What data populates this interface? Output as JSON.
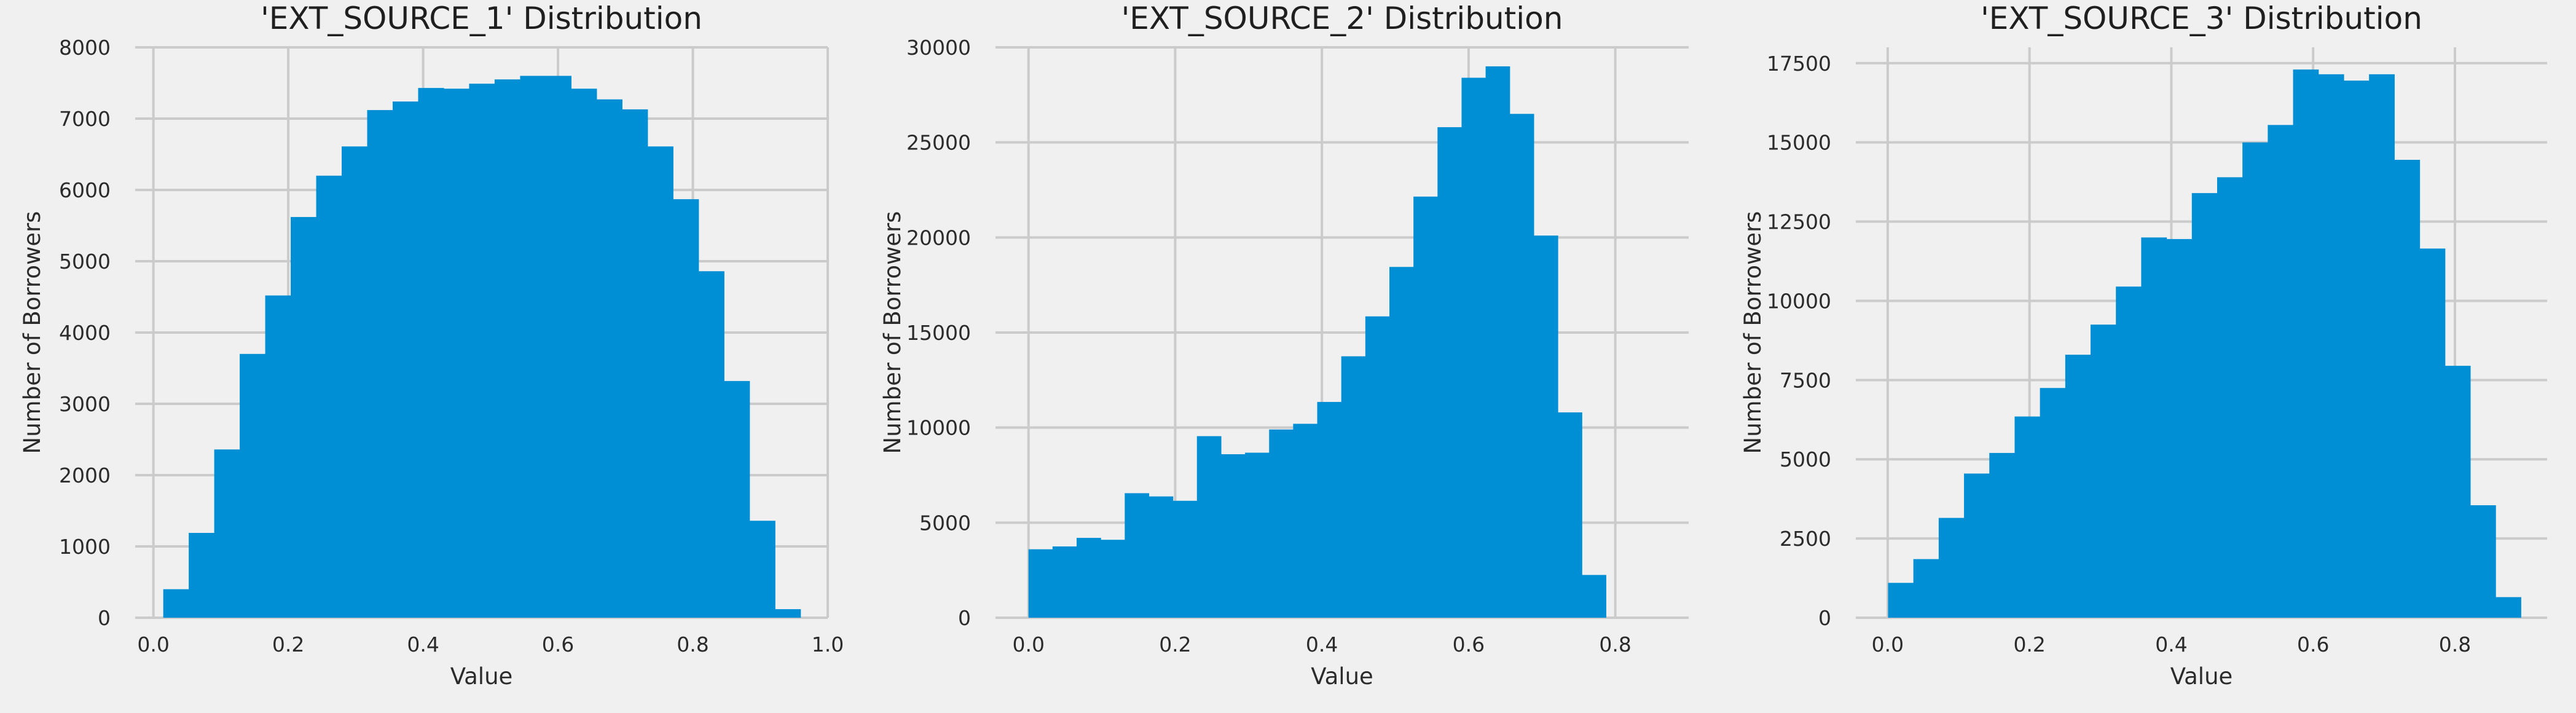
{
  "colors": {
    "background": "#f0f0f0",
    "bar": "#008fd5",
    "grid": "#cbcbcb",
    "text": "#2b2b2b"
  },
  "chart_data": [
    {
      "type": "bar",
      "title": "'EXT_SOURCE_1' Distribution",
      "xlabel": "Value",
      "ylabel": "Number of Borrowers",
      "xlim": [
        -0.027,
        1.0
      ],
      "ylim": [
        0,
        8000
      ],
      "xticks": [
        0.0,
        0.2,
        0.4,
        0.6,
        0.8,
        1.0
      ],
      "xtick_labels": [
        "0.0",
        "0.2",
        "0.4",
        "0.6",
        "0.8",
        "1.0"
      ],
      "yticks": [
        0,
        1000,
        2000,
        3000,
        4000,
        5000,
        6000,
        7000,
        8000
      ],
      "ytick_labels": [
        "0",
        "1000",
        "2000",
        "3000",
        "4000",
        "5000",
        "6000",
        "7000",
        "8000"
      ],
      "grid": true,
      "bin_start": 0.0146,
      "bin_width": 0.0378,
      "values": [
        400,
        1190,
        2360,
        3700,
        4520,
        5620,
        6200,
        6610,
        7120,
        7240,
        7430,
        7420,
        7490,
        7550,
        7600,
        7600,
        7420,
        7270,
        7130,
        6610,
        5870,
        4860,
        3320,
        1360,
        120
      ]
    },
    {
      "type": "bar",
      "title": "'EXT_SOURCE_2' Distribution",
      "xlabel": "Value",
      "ylabel": "Number of Borrowers",
      "xlim": [
        -0.045,
        0.9
      ],
      "ylim": [
        0,
        30000
      ],
      "xticks": [
        0.0,
        0.2,
        0.4,
        0.6,
        0.8
      ],
      "xtick_labels": [
        "0.0",
        "0.2",
        "0.4",
        "0.6",
        "0.8"
      ],
      "yticks": [
        0,
        5000,
        10000,
        15000,
        20000,
        25000,
        30000
      ],
      "ytick_labels": [
        "0",
        "5000",
        "10000",
        "15000",
        "20000",
        "25000",
        "30000"
      ],
      "grid": true,
      "bin_start": 0.0,
      "bin_width": 0.0328,
      "values": [
        3600,
        3750,
        4200,
        4100,
        6550,
        6380,
        6150,
        9550,
        8600,
        8680,
        9900,
        10200,
        11350,
        13750,
        15850,
        18450,
        22150,
        25800,
        28400,
        29000,
        26500,
        20100,
        10800,
        2250
      ]
    },
    {
      "type": "bar",
      "title": "'EXT_SOURCE_3' Distribution",
      "xlabel": "Value",
      "ylabel": "Number of Borrowers",
      "xlim": [
        -0.045,
        0.93
      ],
      "ylim": [
        0,
        18000
      ],
      "xticks": [
        0.0,
        0.2,
        0.4,
        0.6,
        0.8
      ],
      "xtick_labels": [
        "0.0",
        "0.2",
        "0.4",
        "0.6",
        "0.8"
      ],
      "yticks": [
        0,
        2500,
        5000,
        7500,
        10000,
        12500,
        15000,
        17500
      ],
      "ytick_labels": [
        "0",
        "2500",
        "5000",
        "7500",
        "10000",
        "12500",
        "15000",
        "17500"
      ],
      "grid": true,
      "bin_start": 0.0005,
      "bin_width": 0.0357,
      "values": [
        1100,
        1850,
        3150,
        4550,
        5200,
        6350,
        7250,
        8300,
        9250,
        10450,
        12000,
        11950,
        13400,
        13900,
        15000,
        15550,
        17300,
        17150,
        16950,
        17150,
        14450,
        11650,
        7950,
        3550,
        650
      ]
    }
  ]
}
